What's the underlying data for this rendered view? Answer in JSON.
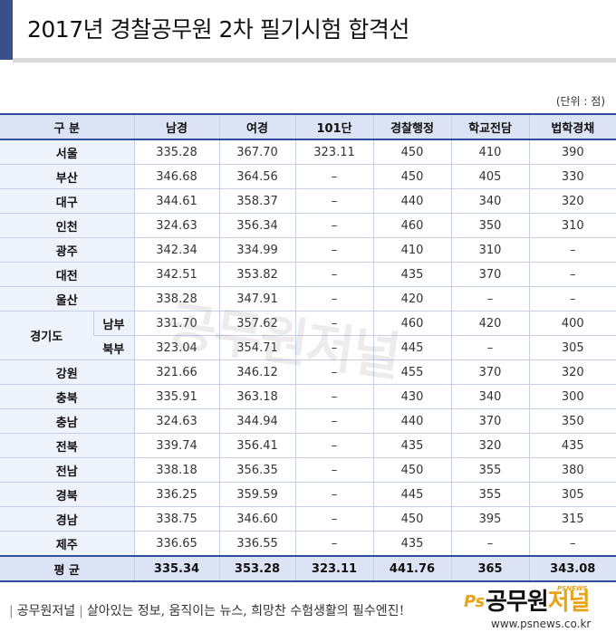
{
  "title": "2017년 경찰공무원 2차 필기시험 합격선",
  "unit_note": "(단위 : 점)",
  "table": {
    "headers": [
      "구  분",
      "남경",
      "여경",
      "101단",
      "경찰행정",
      "학교전담",
      "법학경채"
    ],
    "rows": [
      {
        "region": "서울",
        "values": [
          "335.28",
          "367.70",
          "323.11",
          "450",
          "410",
          "390"
        ]
      },
      {
        "region": "부산",
        "values": [
          "346.68",
          "364.56",
          "–",
          "450",
          "405",
          "330"
        ]
      },
      {
        "region": "대구",
        "values": [
          "344.61",
          "358.37",
          "–",
          "440",
          "340",
          "320"
        ]
      },
      {
        "region": "인천",
        "values": [
          "324.63",
          "356.34",
          "–",
          "460",
          "350",
          "310"
        ]
      },
      {
        "region": "광주",
        "values": [
          "342.34",
          "334.99",
          "–",
          "410",
          "310",
          "–"
        ]
      },
      {
        "region": "대전",
        "values": [
          "342.51",
          "353.82",
          "–",
          "435",
          "370",
          "–"
        ]
      },
      {
        "region": "울산",
        "values": [
          "338.28",
          "347.91",
          "–",
          "420",
          "–",
          "–"
        ]
      },
      {
        "region": "경기도",
        "sub": "남부",
        "values": [
          "331.70",
          "357.62",
          "–",
          "460",
          "420",
          "400"
        ]
      },
      {
        "region": "경기도",
        "sub": "북부",
        "values": [
          "323.04",
          "354.71",
          "–",
          "445",
          "–",
          "305"
        ]
      },
      {
        "region": "강원",
        "values": [
          "321.66",
          "346.12",
          "–",
          "455",
          "370",
          "320"
        ]
      },
      {
        "region": "충북",
        "values": [
          "335.91",
          "363.18",
          "–",
          "430",
          "340",
          "300"
        ]
      },
      {
        "region": "충남",
        "values": [
          "324.63",
          "344.94",
          "–",
          "440",
          "370",
          "350"
        ]
      },
      {
        "region": "전북",
        "values": [
          "339.74",
          "356.41",
          "–",
          "435",
          "320",
          "435"
        ]
      },
      {
        "region": "전남",
        "values": [
          "338.18",
          "356.35",
          "–",
          "450",
          "355",
          "380"
        ]
      },
      {
        "region": "경북",
        "values": [
          "336.25",
          "359.59",
          "–",
          "445",
          "355",
          "305"
        ]
      },
      {
        "region": "경남",
        "values": [
          "338.75",
          "346.60",
          "–",
          "450",
          "395",
          "315"
        ]
      },
      {
        "region": "제주",
        "values": [
          "336.65",
          "336.55",
          "–",
          "435",
          "–",
          "–"
        ]
      }
    ],
    "average": {
      "label": "평  균",
      "values": [
        "335.34",
        "353.28",
        "323.11",
        "441.76",
        "365",
        "343.08"
      ]
    }
  },
  "watermark": "공무원저널",
  "footer": {
    "brand": "공무원저널",
    "slogan": "살아있는 정보, 움직이는 뉴스, 희망찬 수험생활의 필수엔진!",
    "logo_ps": "Ps",
    "logo_name_a": "공무원",
    "logo_name_b": "저널",
    "logo_tag": "PSNEWS",
    "url": "www.psnews.co.kr"
  },
  "colors": {
    "accent_navy": "#3a4f8c",
    "header_fill": "#dbe3f4",
    "rule_blue": "#2e4d9b",
    "logo_orange": "#e8a317"
  }
}
